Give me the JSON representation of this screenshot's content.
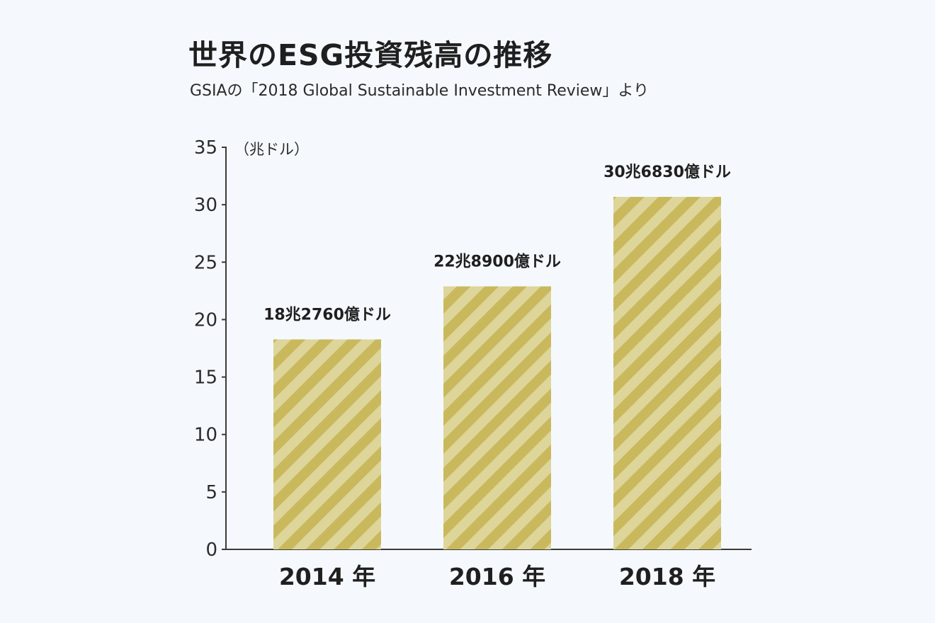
{
  "colors": {
    "bar": "#c9b95c",
    "stripe": "#ddd59a",
    "axis": "#3a3a3a",
    "background": "#f5f9fd"
  },
  "chart_data": {
    "type": "bar",
    "title": "世界のESG投資残高の推移",
    "subtitle": "GSIAの「2018 Global Sustainable Investment Review」より",
    "unit_label": "（兆ドル）",
    "categories": [
      "2014 年",
      "2016 年",
      "2018 年"
    ],
    "values": [
      18.276,
      22.89,
      30.683
    ],
    "value_labels": [
      "18兆2760億ドル",
      "22兆8900億ドル",
      "30兆6830億ドル"
    ],
    "ylim": [
      0,
      35
    ],
    "yticks": [
      "0",
      "5",
      "10",
      "15",
      "20",
      "25",
      "30",
      "35"
    ],
    "grid": false,
    "legend": "none"
  }
}
